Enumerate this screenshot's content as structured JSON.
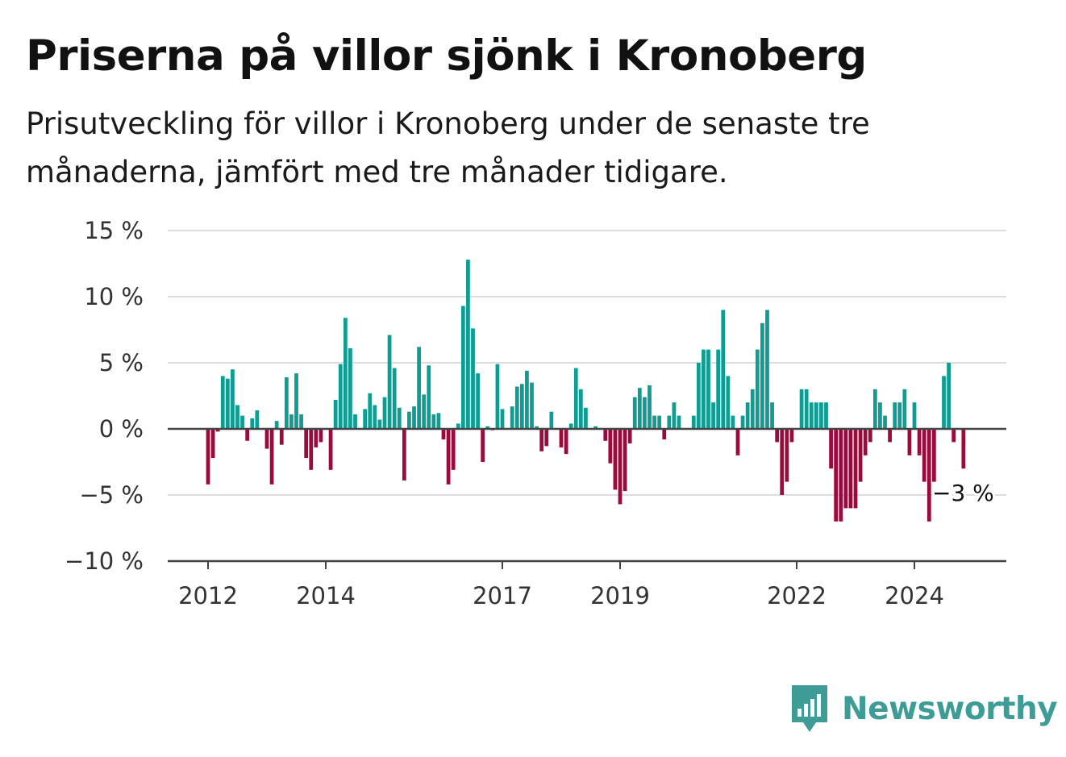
{
  "title": "Priserna på villor sjönk i Kronoberg",
  "subtitle": "Prisutveckling för villor i Kronoberg under de senaste tre månaderna, jämfört med tre månader tidigare.",
  "brand": {
    "name": "Newsworthy",
    "icon": "newsworthy-logo-icon"
  },
  "colors": {
    "positive": "#0e9d92",
    "negative": "#9a0a3d",
    "grid": "#dddddd",
    "axis": "#444444"
  },
  "chart_data": {
    "type": "bar",
    "title": "Priserna på villor sjönk i Kronoberg",
    "subtitle": "Prisutveckling för villor i Kronoberg under de senaste tre månaderna, jämfört med tre månader tidigare.",
    "unit": "%",
    "ylim": [
      -10,
      15
    ],
    "yticks": [
      15,
      10,
      5,
      0,
      -5,
      -10
    ],
    "ytick_labels": [
      "15 %",
      "10 %",
      "5 %",
      "0 %",
      "−5 %",
      "−10 %"
    ],
    "xticks": [
      2012,
      2014,
      2017,
      2019,
      2022,
      2024
    ],
    "xtick_labels": [
      "2012",
      "2014",
      "2017",
      "2019",
      "2022",
      "2024"
    ],
    "grid": true,
    "legend": false,
    "start": "2012-01",
    "frequency": "monthly",
    "annotation": {
      "label": "−3 %",
      "value": -3
    },
    "values": [
      -4.2,
      -2.2,
      -0.2,
      4.0,
      3.8,
      4.5,
      1.8,
      1.0,
      -0.9,
      0.8,
      1.4,
      0.0,
      -1.5,
      -4.2,
      0.6,
      -1.2,
      3.9,
      1.1,
      4.2,
      1.1,
      -2.2,
      -3.1,
      -1.4,
      -1.0,
      0.0,
      -3.1,
      2.2,
      4.9,
      8.4,
      6.1,
      1.1,
      0.0,
      1.5,
      2.7,
      1.8,
      0.7,
      2.4,
      7.1,
      4.6,
      1.6,
      -3.9,
      1.3,
      1.7,
      6.2,
      2.6,
      4.8,
      1.1,
      1.2,
      -0.8,
      -4.2,
      -3.1,
      0.4,
      9.3,
      12.8,
      7.6,
      4.2,
      -2.5,
      0.2,
      -0.1,
      4.9,
      1.5,
      0.0,
      1.7,
      3.2,
      3.4,
      4.4,
      3.5,
      0.2,
      -1.7,
      -1.3,
      1.3,
      0.0,
      -1.4,
      -1.9,
      0.4,
      4.6,
      3.0,
      1.6,
      0.0,
      0.2,
      0.0,
      -0.9,
      -2.6,
      -4.6,
      -5.7,
      -4.7,
      -1.1,
      2.4,
      3.1,
      2.4,
      3.3,
      1.0,
      1.0,
      -0.8,
      1.0,
      2.0,
      1.0,
      0.0,
      0.0,
      1.0,
      5.0,
      6.0,
      6.0,
      2.0,
      6.0,
      9.0,
      4.0,
      1.0,
      -2.0,
      1.0,
      2.0,
      3.0,
      6.0,
      8.0,
      9.0,
      2.0,
      -1.0,
      -5.0,
      -4.0,
      -1.0,
      0.0,
      3.0,
      3.0,
      2.0,
      2.0,
      2.0,
      2.0,
      -3.0,
      -7.0,
      -7.0,
      -6.0,
      -6.0,
      -6.0,
      -4.0,
      -2.0,
      -1.0,
      3.0,
      2.0,
      1.0,
      -1.0,
      2.0,
      2.0,
      3.0,
      -2.0,
      2.0,
      -2.0,
      -4.0,
      -7.0,
      -4.0,
      0.0,
      4.0,
      5.0,
      -1.0,
      0.0,
      -3.0
    ]
  }
}
